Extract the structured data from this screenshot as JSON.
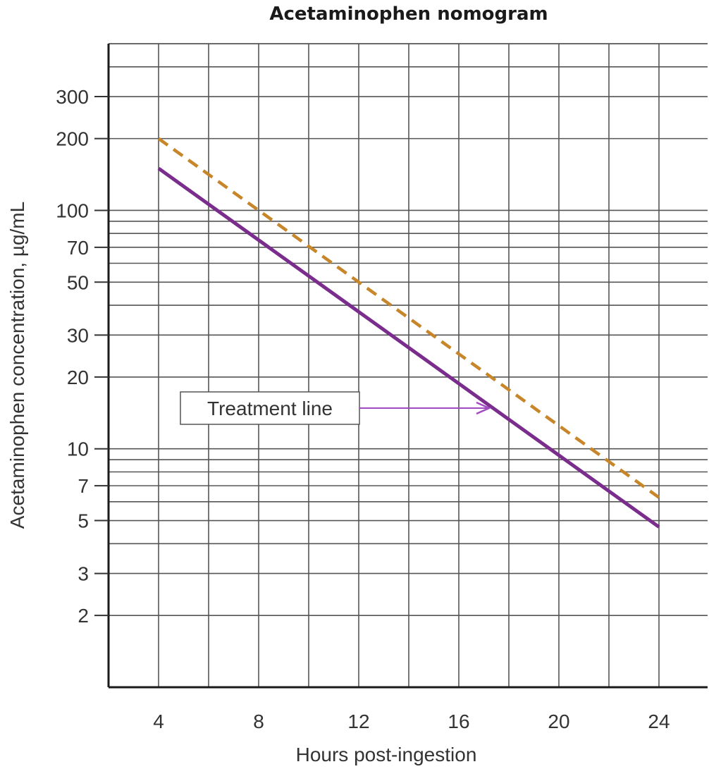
{
  "chart_data": {
    "type": "line",
    "title": "Acetaminophen nomogram",
    "xlabel": "Hours post-ingestion",
    "ylabel": "Acetaminophen concentration, µg/mL",
    "x_ticks": [
      4,
      8,
      12,
      16,
      20,
      24
    ],
    "xlim": [
      2,
      26
    ],
    "y_scale": "log",
    "y_ticks": [
      2,
      3,
      5,
      7,
      10,
      20,
      30,
      50,
      70,
      100,
      200,
      300
    ],
    "ylim": [
      1,
      500
    ],
    "grid": true,
    "series": [
      {
        "name": "",
        "style": "dashed",
        "color": "#c8862a",
        "x": [
          4,
          24
        ],
        "y": [
          200,
          6.25
        ]
      },
      {
        "name": "Treatment line",
        "style": "solid",
        "color": "#7a2d8c",
        "x": [
          4,
          24
        ],
        "y": [
          150,
          4.7
        ]
      }
    ],
    "annotations": [
      {
        "text": "Treatment line",
        "points_to_series": "Treatment line",
        "arrow_color": "#a04cc0"
      }
    ]
  }
}
